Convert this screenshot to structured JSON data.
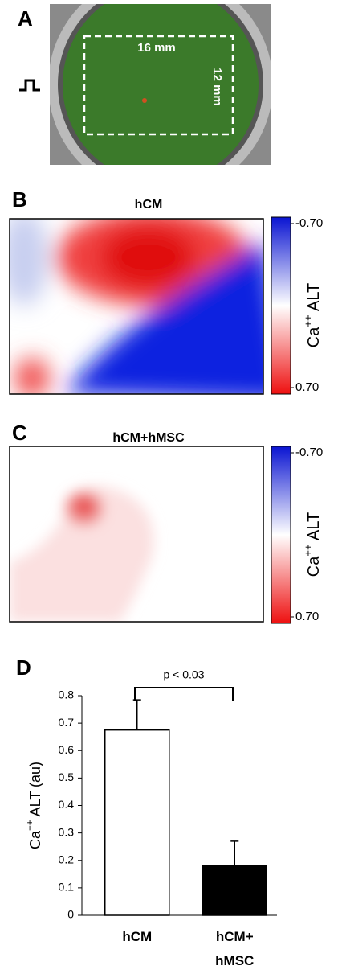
{
  "photo": {
    "label": "A",
    "width_label": "16 mm",
    "height_label": "12 mm"
  },
  "chart_data": [
    {
      "type": "heatmap",
      "panel": "B",
      "title": "hCM",
      "colorbar": {
        "lim": [
          -0.7,
          0.7
        ],
        "ticks": [
          {
            "value": -0.7,
            "label": "-0.70"
          },
          {
            "value": 0.7,
            "label": "0.70"
          }
        ],
        "colors": [
          "#0a14d2",
          "#ffffff",
          "#ee1010"
        ],
        "label": [
          "Ca",
          "++",
          " ALT"
        ]
      }
    },
    {
      "type": "heatmap",
      "panel": "C",
      "title": "hCM+hMSC",
      "colorbar": {
        "lim": [
          -0.7,
          0.7
        ],
        "ticks": [
          {
            "value": -0.7,
            "label": "-0.70"
          },
          {
            "value": 0.7,
            "label": "0.70"
          }
        ],
        "colors": [
          "#0a14d2",
          "#ffffff",
          "#ee1010"
        ],
        "label": [
          "Ca",
          "++",
          " ALT"
        ]
      }
    },
    {
      "type": "bar",
      "panel": "D",
      "annotation": "p < 0.03",
      "ylabel": [
        "Ca",
        "++",
        " ALT (au)"
      ],
      "categories": [
        "hCM",
        "hCM+ hMSC"
      ],
      "values": [
        0.675,
        0.18
      ],
      "errors": [
        0.11,
        0.09
      ],
      "colors": [
        "#ffffff",
        "#000000"
      ],
      "ylim": [
        0,
        0.8
      ],
      "yticks": [
        0,
        0.1,
        0.2,
        0.3,
        0.4,
        0.5,
        0.6,
        0.7,
        0.8
      ]
    }
  ]
}
